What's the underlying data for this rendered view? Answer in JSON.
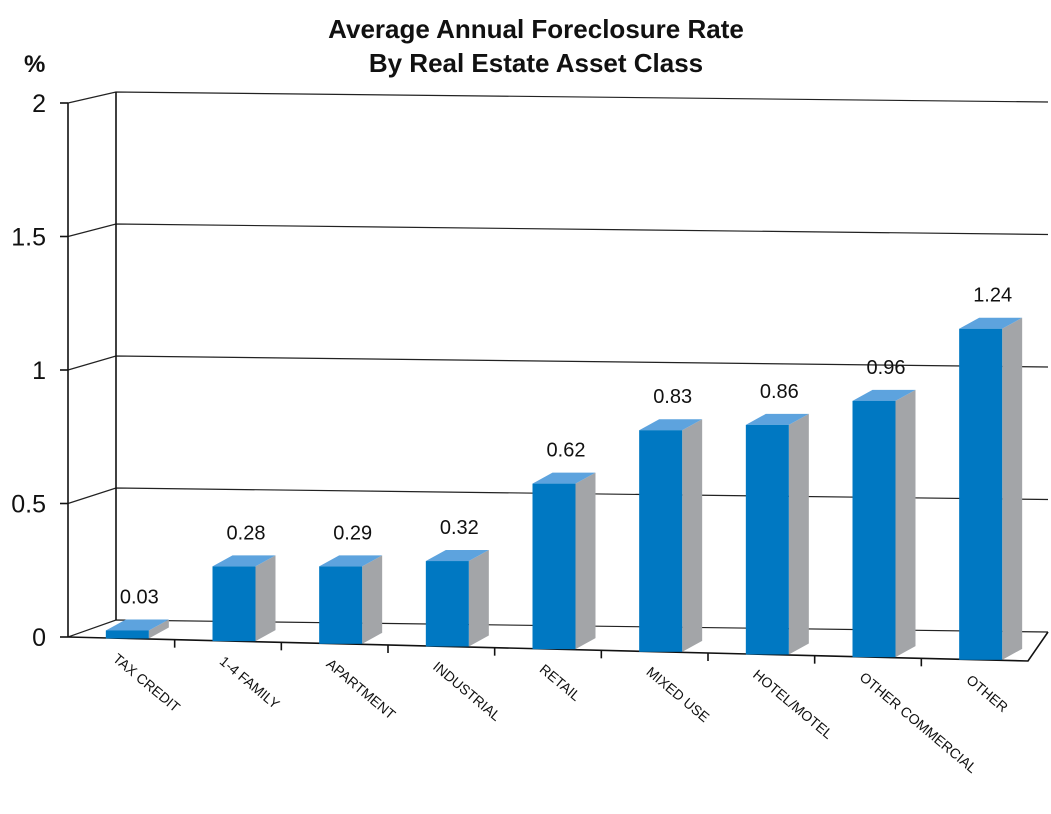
{
  "chart_data": {
    "type": "bar",
    "title": "Average Annual Foreclosure Rate",
    "subtitle": "By Real Estate Asset Class",
    "ylabel": "%",
    "xlabel": "",
    "ylim": [
      0,
      2
    ],
    "yticks": [
      "0",
      "0.5",
      "1",
      "1.5",
      "2"
    ],
    "grid": true,
    "legend": "none",
    "categories": [
      "TAX CREDIT",
      "1-4 FAMILY",
      "APARTMENT",
      "INDUSTRIAL",
      "RETAIL",
      "MIXED USE",
      "HOTEL/MOTEL",
      "OTHER COMMERCIAL",
      "OTHER"
    ],
    "values": [
      0.03,
      0.28,
      0.29,
      0.32,
      0.62,
      0.83,
      0.86,
      0.96,
      1.24
    ],
    "value_labels": [
      "0.03",
      "0.28",
      "0.29",
      "0.32",
      "0.62",
      "0.83",
      "0.86",
      "0.96",
      "1.24"
    ],
    "colors": {
      "bar_front": "#0078c2",
      "bar_top": "#5da3de",
      "bar_side": "#a3a5a8"
    }
  }
}
